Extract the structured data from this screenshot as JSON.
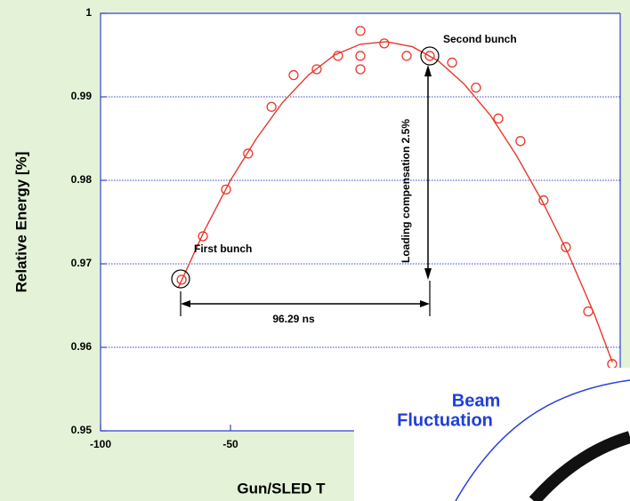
{
  "chart_data": {
    "type": "scatter",
    "y_label": "Relative Energy [%]",
    "x_label": "Gun/SLED T",
    "xlim": [
      -100,
      100
    ],
    "ylim": [
      0.95,
      1
    ],
    "xticks": [
      -100,
      -50
    ],
    "yticks": [
      0.95,
      0.96,
      0.97,
      0.98,
      0.99,
      1
    ],
    "grid": true,
    "series": [
      {
        "color": "#e8382c",
        "x": [
          -68.8,
          -60.6,
          -51.7,
          -43.2,
          -34.2,
          -25.7,
          -16.8,
          -8.6,
          0,
          0,
          0,
          9.2,
          17.8,
          26.7,
          35.3,
          44.5,
          53.1,
          61.6,
          70.5,
          79.1,
          87.7,
          96.9
        ],
        "values": [
          0.9681,
          0.9733,
          0.9789,
          0.9832,
          0.9888,
          0.9926,
          0.9933,
          0.9949,
          0.9979,
          0.9949,
          0.9933,
          0.9964,
          0.9949,
          0.9949,
          0.9941,
          0.9911,
          0.9874,
          0.9847,
          0.9776,
          0.972,
          0.9643,
          0.958
        ]
      },
      {
        "type": "line",
        "color": "#e8382c",
        "x": [
          -70,
          -60,
          -50,
          -40,
          -30,
          -20,
          -10,
          0,
          10,
          20,
          30,
          40,
          50,
          60,
          70,
          80,
          90,
          97
        ],
        "values": [
          0.9672,
          0.974,
          0.98,
          0.985,
          0.9893,
          0.9926,
          0.995,
          0.9963,
          0.9966,
          0.996,
          0.9943,
          0.9915,
          0.9878,
          0.983,
          0.9775,
          0.9712,
          0.964,
          0.9582
        ]
      }
    ],
    "annotations": {
      "first": "First bunch",
      "second": "Second bunch",
      "interval": "96.29 ns",
      "compensation": "Loading compensation 2.5%"
    },
    "overlay_label": [
      "Beam",
      "Fluctuation"
    ]
  }
}
